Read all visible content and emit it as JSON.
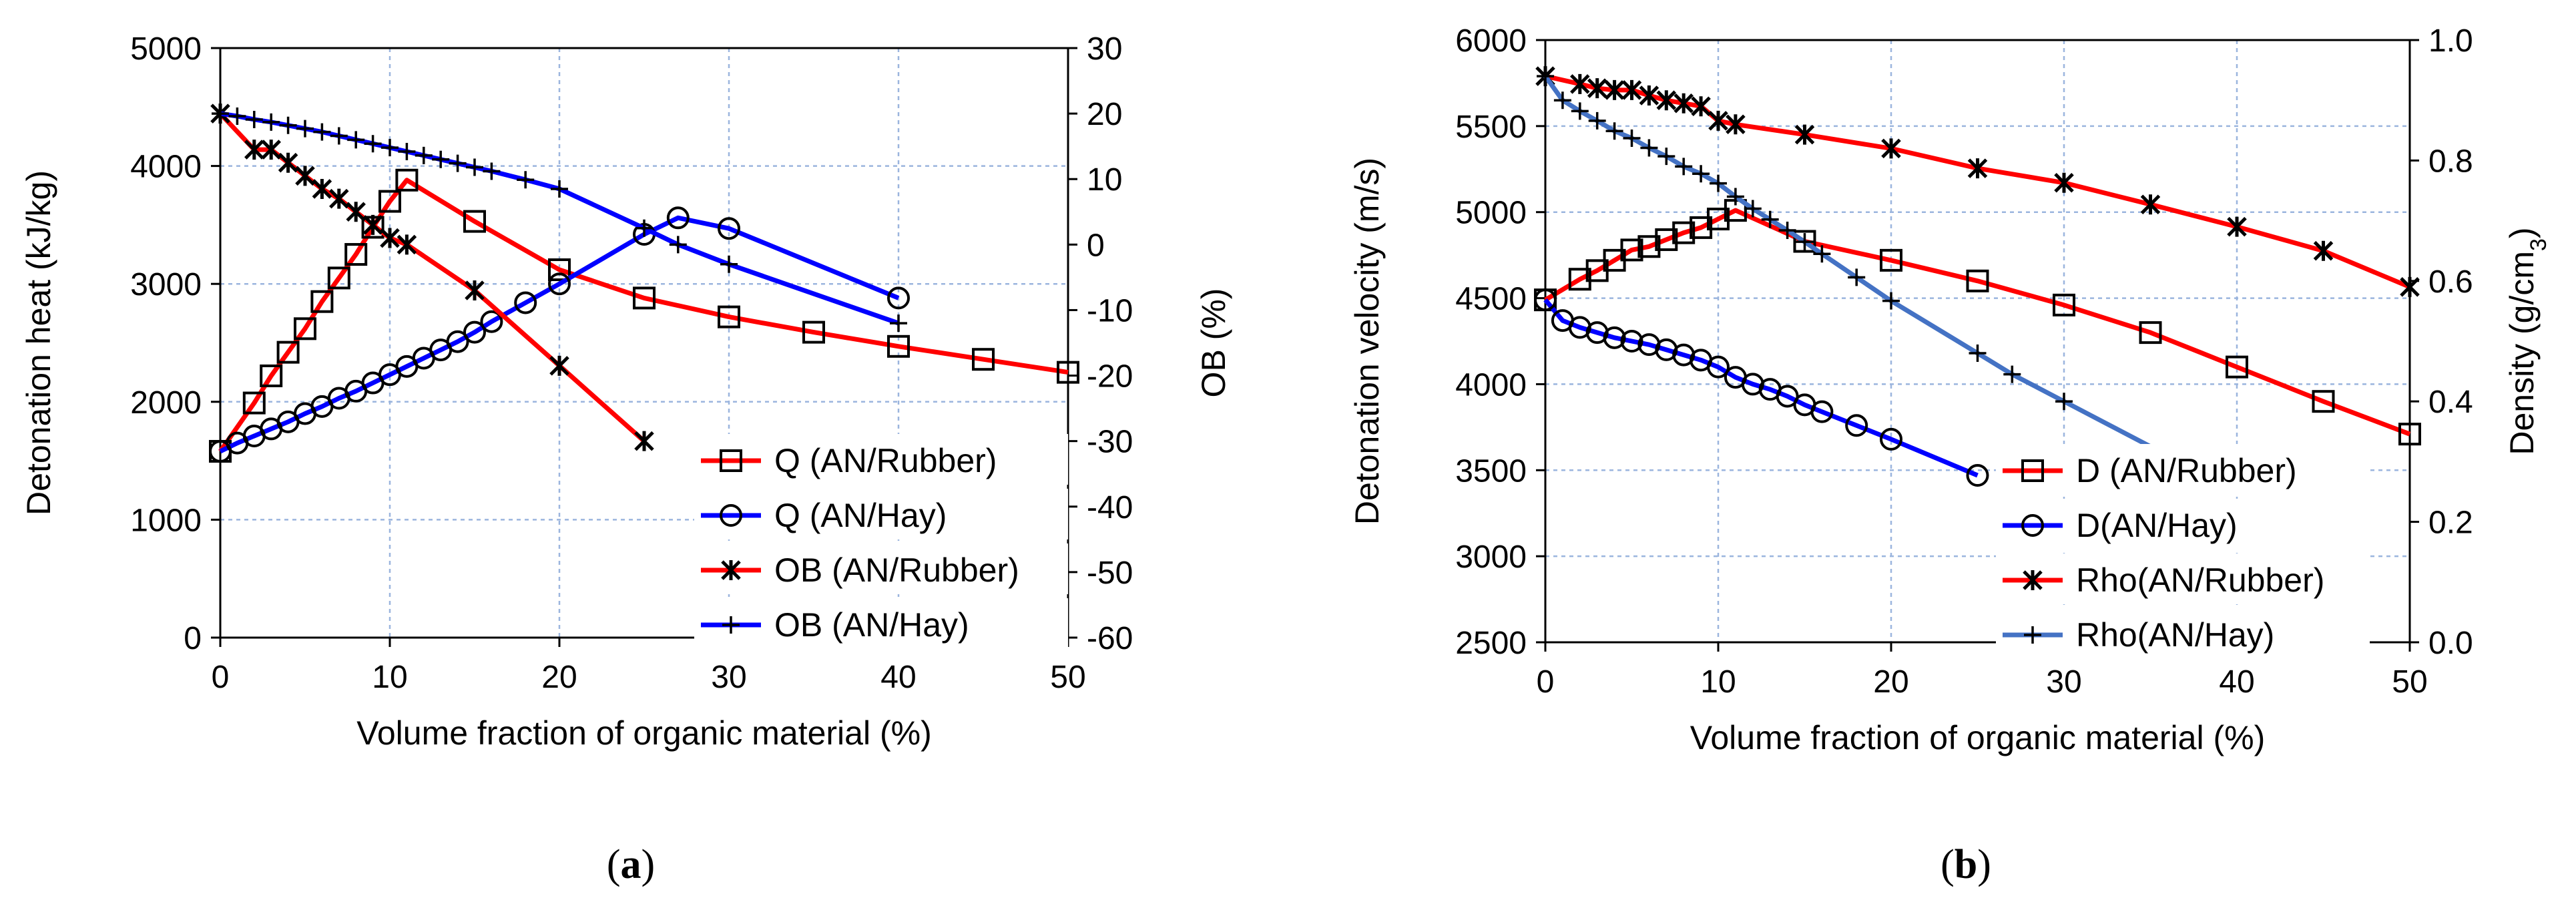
{
  "colors": {
    "red": "#ff0000",
    "blue": "#0000ff",
    "steelblue": "#4472c4",
    "grid": "#9bb5de"
  },
  "chart_data": [
    {
      "type": "line",
      "panel_label": "(a)",
      "xlabel": "Volume fraction of organic material (%)",
      "ylabel": "Detonation heat (kJ/kg)",
      "y2label": "OB (%)",
      "xlim": [
        0,
        50
      ],
      "ylim": [
        0,
        5000
      ],
      "y2lim": [
        -60,
        30
      ],
      "xticks": [
        0,
        10,
        20,
        30,
        40,
        50
      ],
      "yticks": [
        0,
        1000,
        2000,
        3000,
        4000,
        5000
      ],
      "y2ticks": [
        -60,
        -50,
        -40,
        -30,
        -20,
        -10,
        0,
        10,
        20,
        30
      ],
      "grid": true,
      "legend_position": "lower-right",
      "series": [
        {
          "name": "Q (AN/Rubber)",
          "axis": "left",
          "color": "#ff0000",
          "marker": "square",
          "x": [
            0,
            2,
            3,
            4,
            5,
            6,
            7,
            8,
            9,
            10,
            11,
            15,
            20,
            25,
            30,
            35,
            40,
            45,
            50
          ],
          "y": [
            1580,
            1990,
            2220,
            2420,
            2620,
            2850,
            3050,
            3250,
            3480,
            3700,
            3880,
            3530,
            3120,
            2880,
            2720,
            2590,
            2470,
            2360,
            2250
          ]
        },
        {
          "name": "Q (AN/Hay)",
          "axis": "left",
          "color": "#0000ff",
          "marker": "circle",
          "x": [
            0,
            1,
            2,
            3,
            4,
            5,
            6,
            7,
            8,
            9,
            10,
            11,
            12,
            13,
            14,
            15,
            16,
            18,
            20,
            25,
            27,
            30,
            40
          ],
          "y": [
            1580,
            1650,
            1710,
            1770,
            1830,
            1900,
            1960,
            2030,
            2090,
            2160,
            2230,
            2300,
            2370,
            2440,
            2510,
            2590,
            2680,
            2840,
            3000,
            3420,
            3560,
            3470,
            2880
          ]
        },
        {
          "name": "OB (AN/Rubber)",
          "axis": "right",
          "color": "#ff0000",
          "marker": "x-star",
          "x": [
            0,
            2,
            3,
            4,
            5,
            6,
            7,
            8,
            9,
            10,
            11,
            15,
            20,
            25
          ],
          "y": [
            20,
            14.5,
            14.5,
            12.5,
            10.5,
            8.5,
            7,
            5,
            3,
            1,
            0,
            -7,
            -18.5,
            -30
          ]
        },
        {
          "name": "OB (AN/Hay)",
          "axis": "right",
          "color": "#0000ff",
          "marker": "plus",
          "x": [
            0,
            1,
            2,
            3,
            4,
            5,
            6,
            7,
            8,
            9,
            10,
            11,
            12,
            13,
            14,
            15,
            16,
            18,
            20,
            25,
            27,
            30,
            40
          ],
          "y": [
            20,
            19.6,
            19.1,
            18.7,
            18.2,
            17.7,
            17.2,
            16.6,
            16,
            15.4,
            14.8,
            14.2,
            13.6,
            13,
            12.4,
            11.8,
            11.2,
            9.9,
            8.5,
            2.5,
            0,
            -3,
            -12
          ]
        }
      ]
    },
    {
      "type": "line",
      "panel_label": "(b)",
      "xlabel": "Volume fraction of organic material (%)",
      "ylabel": "Detonation velocity (m/s)",
      "y2label_main": "Density (g/cm",
      "y2label_sub": "3",
      "y2label_end": ")",
      "xlim": [
        0,
        50
      ],
      "ylim": [
        2500,
        6000
      ],
      "y2lim": [
        0.0,
        1.0
      ],
      "xticks": [
        0,
        10,
        20,
        30,
        40,
        50
      ],
      "yticks": [
        2500,
        3000,
        3500,
        4000,
        4500,
        5000,
        5500,
        6000
      ],
      "y2ticks": [
        "0.0",
        "0.2",
        "0.4",
        "0.6",
        "0.8",
        "1.0"
      ],
      "grid": true,
      "legend_position": "lower-right",
      "series": [
        {
          "name": "D (AN/Rubber)",
          "axis": "left",
          "color": "#ff0000",
          "marker": "square",
          "x": [
            0,
            2,
            3,
            4,
            5,
            6,
            7,
            8,
            9,
            10,
            11,
            15,
            20,
            25,
            30,
            35,
            40,
            45,
            50
          ],
          "y": [
            4490,
            4610,
            4660,
            4720,
            4780,
            4800,
            4840,
            4880,
            4910,
            4960,
            5010,
            4830,
            4720,
            4600,
            4460,
            4300,
            4100,
            3900,
            3710
          ]
        },
        {
          "name": "D(AN/Hay)",
          "axis": "left",
          "color": "#0000ff",
          "marker": "circle",
          "x": [
            0,
            1,
            2,
            3,
            4,
            5,
            6,
            7,
            8,
            9,
            10,
            11,
            12,
            13,
            14,
            15,
            16,
            18,
            20,
            25
          ],
          "y": [
            4490,
            4370,
            4330,
            4300,
            4270,
            4250,
            4230,
            4200,
            4170,
            4140,
            4100,
            4040,
            4000,
            3970,
            3930,
            3880,
            3840,
            3760,
            3680,
            3470
          ]
        },
        {
          "name": "Rho(AN/Rubber)",
          "axis": "right",
          "color": "#ff0000",
          "marker": "x-star",
          "x": [
            0,
            2,
            3,
            4,
            5,
            6,
            7,
            8,
            9,
            10,
            11,
            15,
            20,
            25,
            30,
            35,
            40,
            45,
            50
          ],
          "y": [
            0.94,
            0.927,
            0.92,
            0.917,
            0.917,
            0.908,
            0.9,
            0.895,
            0.89,
            0.866,
            0.86,
            0.843,
            0.82,
            0.787,
            0.763,
            0.727,
            0.69,
            0.65,
            0.59
          ]
        },
        {
          "name": "Rho(AN/Hay)",
          "axis": "right",
          "color": "#4472c4",
          "marker": "plus",
          "x": [
            0,
            1,
            2,
            3,
            4,
            5,
            6,
            7,
            8,
            9,
            10,
            11,
            12,
            13,
            14,
            15,
            16,
            18,
            20,
            25,
            27,
            30,
            36
          ],
          "y": [
            0.94,
            0.9,
            0.882,
            0.866,
            0.849,
            0.837,
            0.821,
            0.807,
            0.79,
            0.778,
            0.762,
            0.74,
            0.72,
            0.702,
            0.684,
            0.665,
            0.645,
            0.606,
            0.567,
            0.48,
            0.445,
            0.4,
            0.31
          ]
        }
      ]
    }
  ]
}
